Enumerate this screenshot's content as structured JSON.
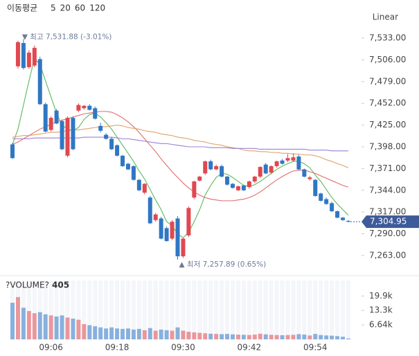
{
  "chart_data": {
    "type": "candlestick",
    "legend_title": "이동평균",
    "scale_label": "Linear",
    "up_color": "#e0484f",
    "down_color": "#2f77c4",
    "categories": [
      null,
      null,
      null,
      null,
      null,
      null,
      null,
      "09:06",
      null,
      null,
      null,
      null,
      null,
      null,
      null,
      null,
      null,
      null,
      null,
      "09:18",
      null,
      null,
      null,
      null,
      null,
      null,
      null,
      null,
      null,
      null,
      null,
      "09:30",
      null,
      null,
      null,
      null,
      null,
      null,
      null,
      null,
      null,
      null,
      null,
      "09:42",
      null,
      null,
      null,
      null,
      null,
      null,
      null,
      null,
      null,
      null,
      null,
      "09:54",
      null,
      null,
      null,
      null,
      null,
      null
    ],
    "open": [
      7401,
      7498,
      7527,
      7497,
      7499,
      7507,
      7451,
      7419,
      7443,
      7430,
      7387,
      7434,
      7443,
      7446,
      7449,
      7446,
      7424,
      7413,
      7408,
      7400,
      7387,
      7377,
      7374,
      7357,
      7341,
      7335,
      7307,
      7309,
      7297,
      7284,
      7309,
      7262,
      7288,
      7335,
      7356,
      7365,
      7380,
      7370,
      7374,
      7361,
      7352,
      7344,
      7350,
      7348,
      7355,
      7361,
      7376,
      7366,
      7374,
      7381,
      7381,
      7381,
      7386,
      7370,
      7358,
      7357,
      7340,
      7333,
      7328,
      7318,
      7310,
      7306
    ],
    "high": [
      7403,
      7530,
      7531.88,
      7518,
      7524,
      7510,
      7453,
      7436,
      7445,
      7432,
      7436,
      7436,
      7452,
      7450,
      7451,
      7448,
      7428,
      7415,
      7410,
      7401,
      7388,
      7378,
      7375,
      7358,
      7353,
      7337,
      7316,
      7311,
      7299,
      7307,
      7312,
      7285,
      7324,
      7356,
      7362,
      7381,
      7382,
      7376,
      7376,
      7362,
      7353,
      7350,
      7351,
      7356,
      7362,
      7374,
      7378,
      7375,
      7381,
      7383,
      7389,
      7390,
      7388,
      7371,
      7362,
      7358,
      7341,
      7335,
      7330,
      7319,
      7311,
      7307
    ],
    "low": [
      7383,
      7495,
      7494,
      7495,
      7497,
      7450,
      7416,
      7417,
      7426,
      7394,
      7385,
      7394,
      7441,
      7444,
      7443,
      7432,
      7416,
      7407,
      7394,
      7386,
      7373,
      7369,
      7356,
      7343,
      7339,
      7302,
      7305,
      7283,
      7280,
      7282,
      7257.89,
      7260,
      7286,
      7333,
      7355,
      7363,
      7369,
      7369,
      7360,
      7350,
      7346,
      7343,
      7343,
      7346,
      7353,
      7359,
      7364,
      7364,
      7372,
      7376,
      7379,
      7379,
      7369,
      7360,
      7356,
      7336,
      7330,
      7326,
      7317,
      7309,
      7306,
      7304
    ],
    "close": [
      7384,
      7528,
      7496,
      7515,
      7521,
      7451,
      7417,
      7434,
      7427,
      7395,
      7434,
      7395,
      7450,
      7449,
      7444,
      7433,
      7418,
      7408,
      7395,
      7387,
      7374,
      7370,
      7357,
      7344,
      7352,
      7303,
      7314,
      7284,
      7281,
      7305,
      7262,
      7284,
      7322,
      7355,
      7361,
      7380,
      7370,
      7374,
      7361,
      7351,
      7347,
      7349,
      7344,
      7355,
      7361,
      7373,
      7365,
      7374,
      7380,
      7377,
      7384,
      7385,
      7370,
      7361,
      7360,
      7337,
      7331,
      7327,
      7318,
      7310,
      7307,
      7304.95
    ],
    "last_close_label": "7,304.95",
    "series": [
      {
        "name": "5",
        "color": "#5cb85c",
        "values": [
          7401,
          7420,
          7450,
          7480,
          7508,
          7500,
          7480,
          7460,
          7440,
          7425,
          7420,
          7418,
          7422,
          7432,
          7438,
          7440,
          7435,
          7428,
          7420,
          7410,
          7400,
          7390,
          7380,
          7368,
          7358,
          7345,
          7332,
          7320,
          7305,
          7300,
          7290,
          7285,
          7292,
          7305,
          7320,
          7338,
          7350,
          7360,
          7365,
          7364,
          7360,
          7355,
          7350,
          7349,
          7351,
          7355,
          7360,
          7365,
          7370,
          7374,
          7377,
          7380,
          7380,
          7377,
          7372,
          7363,
          7355,
          7345,
          7335,
          7327,
          7320,
          7313
        ]
      },
      {
        "name": "20",
        "color": "#e06c6c",
        "values": [
          7401,
          7404,
          7408,
          7412,
          7416,
          7420,
          7423,
          7426,
          7429,
          7431,
          7433,
          7435,
          7437,
          7439,
          7440,
          7441,
          7442,
          7442,
          7441,
          7438,
          7434,
          7429,
          7423,
          7416,
          7408,
          7400,
          7392,
          7383,
          7375,
          7367,
          7360,
          7353,
          7347,
          7342,
          7338,
          7335,
          7333,
          7332,
          7331,
          7331,
          7331,
          7332,
          7333,
          7335,
          7338,
          7342,
          7347,
          7352,
          7357,
          7361,
          7365,
          7368,
          7369,
          7369,
          7367,
          7365,
          7362,
          7359,
          7356,
          7353,
          7350,
          7348
        ]
      },
      {
        "name": "60",
        "color": "#e0a066",
        "values": [
          7410,
          7411,
          7412,
          7412,
          7413,
          7414,
          7415,
          7416,
          7416,
          7417,
          7418,
          7419,
          7419,
          7420,
          7421,
          7422,
          7423,
          7423,
          7424,
          7425,
          7424,
          7422,
          7421,
          7420,
          7418,
          7417,
          7416,
          7414,
          7413,
          7412,
          7410,
          7409,
          7408,
          7406,
          7405,
          7404,
          7402,
          7401,
          7400,
          7398,
          7397,
          7396,
          7394,
          7393,
          7393,
          7392,
          7392,
          7391,
          7391,
          7390,
          7390,
          7389,
          7389,
          7388,
          7388,
          7387,
          7385,
          7382,
          7380,
          7377,
          7375,
          7372
        ]
      },
      {
        "name": "120",
        "color": "#9b80d4",
        "values": [
          7408,
          7408,
          7408,
          7408,
          7409,
          7409,
          7409,
          7409,
          7409,
          7409,
          7409,
          7409,
          7409,
          7410,
          7410,
          7410,
          7410,
          7410,
          7410,
          7409,
          7408,
          7408,
          7407,
          7406,
          7405,
          7404,
          7403,
          7402,
          7402,
          7401,
          7400,
          7399,
          7398,
          7398,
          7398,
          7398,
          7397,
          7397,
          7397,
          7397,
          7396,
          7396,
          7396,
          7396,
          7396,
          7395,
          7395,
          7395,
          7395,
          7395,
          7395,
          7395,
          7395,
          7395,
          7394,
          7394,
          7394,
          7394,
          7393,
          7393,
          7393,
          7393
        ]
      }
    ],
    "ylim": [
      7250,
      7546
    ],
    "yticks": [
      {
        "value": 7533,
        "label": "7,533.00"
      },
      {
        "value": 7506,
        "label": "7,506.00"
      },
      {
        "value": 7479,
        "label": "7,479.00"
      },
      {
        "value": 7452,
        "label": "7,452.00"
      },
      {
        "value": 7425,
        "label": "7,425.00"
      },
      {
        "value": 7398,
        "label": "7,398.00"
      },
      {
        "value": 7371,
        "label": "7,371.00"
      },
      {
        "value": 7344,
        "label": "7,344.00"
      },
      {
        "value": 7317,
        "label": "7,317.00"
      },
      {
        "value": 7290,
        "label": "7,290.00"
      },
      {
        "value": 7263,
        "label": "7,263.00"
      }
    ],
    "annotations": [
      {
        "text": "▼ 최고 7,531.88 (-3.01%)"
      },
      {
        "text": "▲ 최저 7,257.89 (0.65%)"
      }
    ],
    "volume": {
      "title": "?VOLUME?",
      "values": [
        16800,
        19400,
        14500,
        13000,
        12000,
        12500,
        11500,
        11000,
        10500,
        11000,
        10000,
        9500,
        9000,
        7000,
        6500,
        6000,
        5500,
        5000,
        5500,
        5000,
        4800,
        5000,
        4500,
        4800,
        4200,
        5200,
        4000,
        4500,
        4200,
        4000,
        5500,
        4000,
        3500,
        3200,
        3000,
        2800,
        2600,
        2500,
        2400,
        2500,
        2300,
        2200,
        2100,
        2000,
        2200,
        2600,
        2300,
        2100,
        2000,
        1900,
        2000,
        2100,
        2400,
        2200,
        1800,
        2500,
        2000,
        1800,
        1700,
        1500,
        1200,
        405
      ],
      "ylim": [
        0,
        27000
      ],
      "yticks": [
        {
          "value": 6640,
          "label": "6.64k"
        },
        {
          "value": 13300,
          "label": "13.3k"
        },
        {
          "value": 19900,
          "label": "19.9k"
        }
      ]
    }
  }
}
